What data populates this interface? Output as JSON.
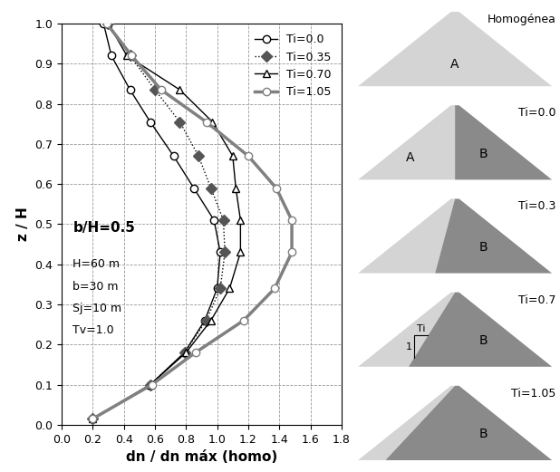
{
  "chart_data": {
    "type": "line",
    "xlabel": "dn / dn máx (homo)",
    "ylabel": "z / H",
    "xlim": [
      0.0,
      1.8
    ],
    "ylim": [
      0.0,
      1.0
    ],
    "xticks": [
      0.0,
      0.2,
      0.4,
      0.6,
      0.8,
      1.0,
      1.2,
      1.4,
      1.6,
      1.8
    ],
    "yticks": [
      0.0,
      0.1,
      0.2,
      0.3,
      0.4,
      0.5,
      0.6,
      0.7,
      0.8,
      0.9,
      1.0
    ],
    "grid": true,
    "legend": "upper right",
    "annotations": {
      "main": "b/H=0.5",
      "params": [
        "H=60 m",
        "b=30 m",
        "Sj=10 m",
        "Tv=1.0"
      ]
    },
    "series": [
      {
        "name": "Ti=0.0",
        "color": "#000000",
        "marker": "o",
        "line_style": "solid",
        "x": [
          0.2,
          0.57,
          0.79,
          0.92,
          1.0,
          1.02,
          0.98,
          0.85,
          0.72,
          0.57,
          0.44,
          0.32,
          0.27
        ],
        "y": [
          0.015,
          0.1,
          0.18,
          0.26,
          0.34,
          0.43,
          0.51,
          0.59,
          0.67,
          0.755,
          0.835,
          0.92,
          1.0
        ]
      },
      {
        "name": "Ti=0.35",
        "color": "#555555",
        "marker": "D",
        "line_style": "dotted",
        "x": [
          0.2,
          0.57,
          0.79,
          0.93,
          1.02,
          1.05,
          1.04,
          0.96,
          0.88,
          0.76,
          0.6,
          0.44,
          0.3
        ],
        "y": [
          0.015,
          0.1,
          0.18,
          0.26,
          0.34,
          0.43,
          0.51,
          0.59,
          0.67,
          0.755,
          0.835,
          0.92,
          1.0
        ]
      },
      {
        "name": "Ti=0.70",
        "color": "#000000",
        "marker": "^",
        "line_style": "solid",
        "x": [
          0.2,
          0.57,
          0.8,
          0.96,
          1.08,
          1.15,
          1.15,
          1.12,
          1.1,
          0.97,
          0.76,
          0.42,
          0.3
        ],
        "y": [
          0.015,
          0.1,
          0.18,
          0.26,
          0.34,
          0.43,
          0.51,
          0.59,
          0.67,
          0.755,
          0.835,
          0.92,
          1.0
        ]
      },
      {
        "name": "Ti=1.05",
        "color": "#808080",
        "marker": "o",
        "line_style": "solid",
        "x": [
          0.2,
          0.58,
          0.86,
          1.17,
          1.37,
          1.48,
          1.48,
          1.38,
          1.2,
          0.93,
          0.64,
          0.45,
          0.29
        ],
        "y": [
          0.015,
          0.1,
          0.18,
          0.26,
          0.34,
          0.43,
          0.51,
          0.59,
          0.67,
          0.755,
          0.835,
          0.92,
          1.0
        ]
      }
    ]
  },
  "diagrams": [
    {
      "title": "Homogénea",
      "zones": [
        "A"
      ]
    },
    {
      "title": "Ti=0.0",
      "ti": 0.0,
      "zones": [
        "A",
        "B"
      ]
    },
    {
      "title": "Ti=0.3",
      "ti": 0.3,
      "zones": [
        "B"
      ]
    },
    {
      "title": "Ti=0.7",
      "ti": 0.7,
      "zones": [
        "B"
      ],
      "slope_labels": [
        "Ti",
        "1"
      ]
    },
    {
      "title": "Ti=1.05",
      "ti": 1.05,
      "zones": [
        "B"
      ]
    }
  ]
}
